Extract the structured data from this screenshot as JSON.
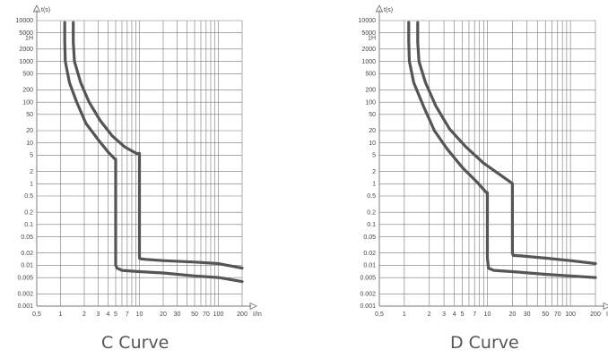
{
  "colors": {
    "curve": "#555555",
    "grid": "#777777",
    "text": "#444444",
    "caption": "#555555"
  },
  "chart_data": [
    {
      "type": "line",
      "title": "",
      "caption": "C Curve",
      "ylabel": "t(s)",
      "xlabel": "I/In",
      "xscale": "log",
      "yscale": "log",
      "xlim": [
        0.5,
        200
      ],
      "ylim": [
        0.001,
        10000
      ],
      "grid": true,
      "x_tick_labels": [
        {
          "v": 0.5,
          "t": "0,5"
        },
        {
          "v": 1,
          "t": "1"
        },
        {
          "v": 2,
          "t": "2"
        },
        {
          "v": 3,
          "t": "3"
        },
        {
          "v": 4,
          "t": "4"
        },
        {
          "v": 5,
          "t": "5"
        },
        {
          "v": 7,
          "t": "7"
        },
        {
          "v": 10,
          "t": "10"
        },
        {
          "v": 20,
          "t": "20"
        },
        {
          "v": 30,
          "t": "30"
        },
        {
          "v": 50,
          "t": "50"
        },
        {
          "v": 70,
          "t": "70"
        },
        {
          "v": 100,
          "t": "100"
        },
        {
          "v": 200,
          "t": "200"
        }
      ],
      "y_tick_labels": [
        {
          "v": 10000,
          "t": "10000"
        },
        {
          "v": 5000,
          "t": "5000"
        },
        {
          "v": 3600,
          "t": "1H"
        },
        {
          "v": 2000,
          "t": "2000"
        },
        {
          "v": 1000,
          "t": "1000"
        },
        {
          "v": 500,
          "t": "500"
        },
        {
          "v": 200,
          "t": "200"
        },
        {
          "v": 100,
          "t": "100"
        },
        {
          "v": 50,
          "t": "50"
        },
        {
          "v": 20,
          "t": "20"
        },
        {
          "v": 10,
          "t": "10"
        },
        {
          "v": 5,
          "t": "5"
        },
        {
          "v": 2,
          "t": "2"
        },
        {
          "v": 1,
          "t": "1"
        },
        {
          "v": 0.5,
          "t": "0.5"
        },
        {
          "v": 0.2,
          "t": "0.2"
        },
        {
          "v": 0.1,
          "t": "0.1"
        },
        {
          "v": 0.05,
          "t": "0.05"
        },
        {
          "v": 0.02,
          "t": "0.02"
        },
        {
          "v": 0.01,
          "t": "0.01"
        },
        {
          "v": 0.005,
          "t": "0.005"
        },
        {
          "v": 0.002,
          "t": "0.002"
        },
        {
          "v": 0.001,
          "t": "0.001"
        }
      ],
      "series": [
        {
          "x": [
            1.13,
            1.13,
            1.15,
            1.3,
            1.6,
            2.1,
            3.0,
            4.0,
            4.9,
            5.0,
            5.0,
            5.2,
            6,
            10,
            20,
            50,
            100,
            200
          ],
          "y": [
            9000,
            3000,
            1000,
            300,
            100,
            30,
            12,
            6,
            4,
            4,
            0.01,
            0.0085,
            0.0075,
            0.007,
            0.0065,
            0.0055,
            0.005,
            0.004
          ]
        },
        {
          "x": [
            1.45,
            1.45,
            1.5,
            1.8,
            2.3,
            3.2,
            4.5,
            6.5,
            9.2,
            10,
            10,
            10.3,
            12,
            20,
            50,
            100,
            200
          ],
          "y": [
            9000,
            3000,
            1000,
            300,
            100,
            35,
            15,
            8,
            5.5,
            5.5,
            0.015,
            0.0145,
            0.014,
            0.013,
            0.012,
            0.011,
            0.0085
          ]
        }
      ]
    },
    {
      "type": "line",
      "title": "",
      "caption": "D Curve",
      "ylabel": "t(s)",
      "xlabel": "I/In",
      "xscale": "log",
      "yscale": "log",
      "xlim": [
        0.5,
        200
      ],
      "ylim": [
        0.001,
        10000
      ],
      "grid": true,
      "x_tick_labels": [
        {
          "v": 0.5,
          "t": "0,5"
        },
        {
          "v": 1,
          "t": "1"
        },
        {
          "v": 2,
          "t": "2"
        },
        {
          "v": 3,
          "t": "3"
        },
        {
          "v": 4,
          "t": "4"
        },
        {
          "v": 5,
          "t": "5"
        },
        {
          "v": 7,
          "t": "7"
        },
        {
          "v": 10,
          "t": "10"
        },
        {
          "v": 20,
          "t": "20"
        },
        {
          "v": 30,
          "t": "30"
        },
        {
          "v": 50,
          "t": "50"
        },
        {
          "v": 70,
          "t": "70"
        },
        {
          "v": 100,
          "t": "100"
        },
        {
          "v": 200,
          "t": "200"
        }
      ],
      "y_tick_labels": [
        {
          "v": 10000,
          "t": "10000"
        },
        {
          "v": 5000,
          "t": "5000"
        },
        {
          "v": 3600,
          "t": "1H"
        },
        {
          "v": 2000,
          "t": "2000"
        },
        {
          "v": 1000,
          "t": "1000"
        },
        {
          "v": 500,
          "t": "500"
        },
        {
          "v": 200,
          "t": "200"
        },
        {
          "v": 100,
          "t": "100"
        },
        {
          "v": 50,
          "t": "50"
        },
        {
          "v": 20,
          "t": "20"
        },
        {
          "v": 10,
          "t": "10"
        },
        {
          "v": 5,
          "t": "5"
        },
        {
          "v": 2,
          "t": "2"
        },
        {
          "v": 1,
          "t": "1"
        },
        {
          "v": 0.5,
          "t": "0.5"
        },
        {
          "v": 0.2,
          "t": "0.2"
        },
        {
          "v": 0.1,
          "t": "0.1"
        },
        {
          "v": 0.05,
          "t": "0.05"
        },
        {
          "v": 0.02,
          "t": "0.02"
        },
        {
          "v": 0.01,
          "t": "0.01"
        },
        {
          "v": 0.005,
          "t": "0.005"
        },
        {
          "v": 0.002,
          "t": "0.002"
        },
        {
          "v": 0.001,
          "t": "0.001"
        }
      ],
      "series": [
        {
          "x": [
            1.13,
            1.13,
            1.15,
            1.3,
            1.7,
            2.3,
            3.3,
            5.0,
            7.5,
            9.8,
            10,
            10,
            10.3,
            12,
            20,
            50,
            100,
            200
          ],
          "y": [
            9000,
            3000,
            1000,
            300,
            80,
            20,
            7,
            2.5,
            1.1,
            0.6,
            0.6,
            0.015,
            0.0085,
            0.0075,
            0.007,
            0.006,
            0.0055,
            0.005
          ]
        },
        {
          "x": [
            1.45,
            1.45,
            1.5,
            1.8,
            2.4,
            3.5,
            5.5,
            9,
            14,
            19.5,
            20,
            20,
            20.5,
            25,
            50,
            100,
            200
          ],
          "y": [
            9000,
            3000,
            1000,
            300,
            80,
            22,
            8,
            3.2,
            1.7,
            1.05,
            1.0,
            0.02,
            0.0175,
            0.017,
            0.015,
            0.013,
            0.011
          ]
        }
      ]
    }
  ]
}
